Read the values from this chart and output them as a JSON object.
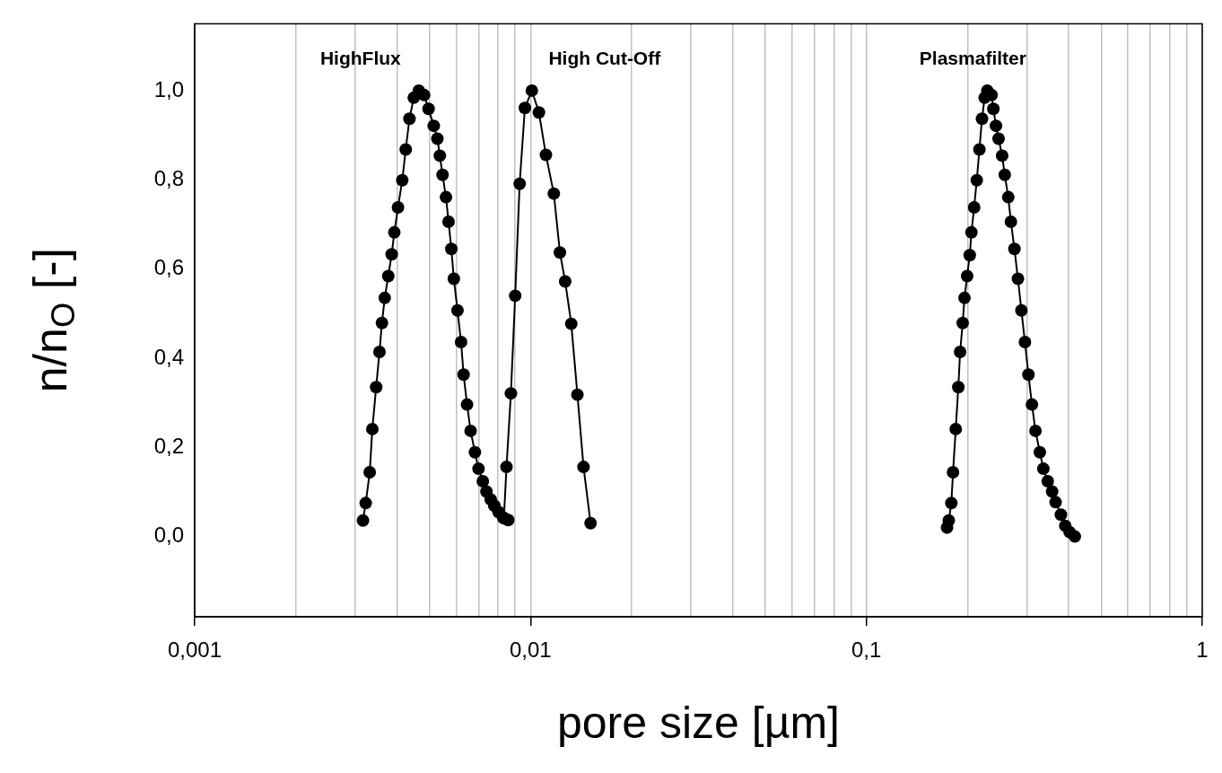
{
  "chart_data": {
    "type": "line",
    "xlabel": "pore size [µm]",
    "ylabel": "n/n$_{O}$ [-]",
    "log": "x",
    "grid": "x",
    "legend": false,
    "marker": "circle",
    "line_style": "solid",
    "xlim": [
      0.001,
      1
    ],
    "ylim": [
      -0.18,
      1.15
    ],
    "xticks": [
      {
        "value": 0.001,
        "label": "0,001"
      },
      {
        "value": 0.002,
        "label": null
      },
      {
        "value": 0.003,
        "label": null
      },
      {
        "value": 0.004,
        "label": null
      },
      {
        "value": 0.005,
        "label": null
      },
      {
        "value": 0.006,
        "label": null
      },
      {
        "value": 0.007,
        "label": null
      },
      {
        "value": 0.008,
        "label": null
      },
      {
        "value": 0.009,
        "label": null
      },
      {
        "value": 0.01,
        "label": "0,01"
      },
      {
        "value": 0.02,
        "label": null
      },
      {
        "value": 0.03,
        "label": null
      },
      {
        "value": 0.04,
        "label": null
      },
      {
        "value": 0.05,
        "label": null
      },
      {
        "value": 0.06,
        "label": null
      },
      {
        "value": 0.07,
        "label": null
      },
      {
        "value": 0.08,
        "label": null
      },
      {
        "value": 0.09,
        "label": null
      },
      {
        "value": 0.1,
        "label": "0,1"
      },
      {
        "value": 0.2,
        "label": null
      },
      {
        "value": 0.3,
        "label": null
      },
      {
        "value": 0.4,
        "label": null
      },
      {
        "value": 0.5,
        "label": null
      },
      {
        "value": 0.6,
        "label": null
      },
      {
        "value": 0.7,
        "label": null
      },
      {
        "value": 0.8,
        "label": null
      },
      {
        "value": 0.9,
        "label": null
      },
      {
        "value": 1,
        "label": "1"
      }
    ],
    "yticks": [
      {
        "value": 0,
        "label": "0,0"
      },
      {
        "value": 0.2,
        "label": "0,2"
      },
      {
        "value": 0.4,
        "label": "0,4"
      },
      {
        "value": 0.6,
        "label": "0,6"
      },
      {
        "value": 0.8,
        "label": "0,8"
      },
      {
        "value": 1,
        "label": "1,0"
      }
    ],
    "annotations": [
      "HighFlux",
      "High Cut-Off",
      "Plasmafilter"
    ],
    "series": [
      {
        "color": "#000000",
        "x": [
          0.00317,
          0.00323,
          0.00332,
          0.00338,
          0.00347,
          0.00355,
          0.00361,
          0.00368,
          0.00377,
          0.00386,
          0.00393,
          0.00403,
          0.00415,
          0.00425,
          0.00436,
          0.00449,
          0.00465,
          0.00482,
          0.00497,
          0.00515,
          0.00528,
          0.00537,
          0.00547,
          0.0056,
          0.0057,
          0.00581,
          0.00591,
          0.00606,
          0.00621,
          0.00632,
          0.00647,
          0.00663,
          0.00683,
          0.007,
          0.00721,
          0.00739,
          0.00761,
          0.0078,
          0.00803,
          0.00828,
          0.00858
        ],
        "values": [
          0.036,
          0.075,
          0.144,
          0.241,
          0.335,
          0.414,
          0.479,
          0.535,
          0.584,
          0.633,
          0.682,
          0.738,
          0.799,
          0.868,
          0.937,
          0.984,
          1.0,
          0.99,
          0.959,
          0.921,
          0.892,
          0.854,
          0.811,
          0.761,
          0.706,
          0.645,
          0.578,
          0.507,
          0.436,
          0.363,
          0.296,
          0.237,
          0.189,
          0.152,
          0.124,
          0.101,
          0.083,
          0.069,
          0.055,
          0.043,
          0.037
        ]
      },
      {
        "color": "#000000",
        "x": [
          0.00833,
          0.00848,
          0.00874,
          0.009,
          0.00928,
          0.00962,
          0.01009,
          0.01059,
          0.01111,
          0.01173,
          0.01223,
          0.01268,
          0.01322,
          0.01379,
          0.01438,
          0.01509
        ],
        "values": [
          0.041,
          0.156,
          0.321,
          0.54,
          0.791,
          0.961,
          1.0,
          0.951,
          0.856,
          0.769,
          0.637,
          0.572,
          0.477,
          0.318,
          0.156,
          0.03
        ]
      },
      {
        "color": "#000000",
        "x": [
          0.1738,
          0.1759,
          0.179,
          0.1811,
          0.1845,
          0.1878,
          0.1901,
          0.1935,
          0.1959,
          0.1995,
          0.2031,
          0.2055,
          0.2093,
          0.2131,
          0.217,
          0.2209,
          0.2249,
          0.229,
          0.236,
          0.2388,
          0.2431,
          0.2475,
          0.2536,
          0.2582,
          0.2645,
          0.2693,
          0.2759,
          0.2826,
          0.2894,
          0.2965,
          0.3037,
          0.3111,
          0.3187,
          0.3284,
          0.3364,
          0.3467,
          0.3572,
          0.3659,
          0.3794,
          0.3909,
          0.4027,
          0.4175
        ],
        "values": [
          0.02,
          0.036,
          0.075,
          0.144,
          0.241,
          0.335,
          0.414,
          0.479,
          0.535,
          0.584,
          0.631,
          0.682,
          0.738,
          0.799,
          0.868,
          0.937,
          0.984,
          1.0,
          0.99,
          0.959,
          0.921,
          0.892,
          0.854,
          0.811,
          0.761,
          0.706,
          0.645,
          0.578,
          0.507,
          0.436,
          0.363,
          0.296,
          0.237,
          0.189,
          0.152,
          0.124,
          0.101,
          0.077,
          0.049,
          0.024,
          0.01,
          0.0
        ]
      }
    ]
  }
}
